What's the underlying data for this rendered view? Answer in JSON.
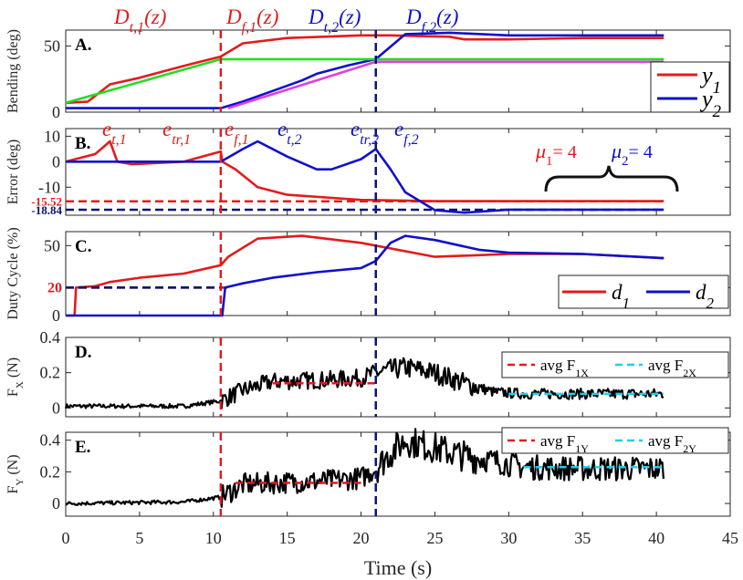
{
  "colors": {
    "red": "#e41a1c",
    "blue": "#1010cc",
    "navy": "#0c1470",
    "green": "#22dd22",
    "magenta": "#e040e0",
    "cyan": "#22ccee",
    "black": "#000000"
  },
  "xaxis": {
    "label": "Time (s)",
    "range": [
      0,
      45
    ],
    "ticks": [
      "0",
      "5",
      "10",
      "15",
      "20",
      "25",
      "30",
      "35",
      "40",
      "45"
    ]
  },
  "events": {
    "t_f1": 10.5,
    "t_f2": 21.0,
    "top_labels": [
      "D_{t,1}(z)",
      "D_{f,1}(z)",
      "D_{t,2}(z)",
      "D_{f,2}(z)"
    ]
  },
  "chart_data": [
    {
      "panel": "A.",
      "type": "line",
      "ylabel": "Bending (deg)",
      "ylim": [
        0,
        62
      ],
      "yticks": [
        "0",
        "50"
      ],
      "series": [
        {
          "name": "y_1",
          "color": "#e41a1c",
          "points": [
            [
              0,
              7
            ],
            [
              1.5,
              8
            ],
            [
              3,
              21
            ],
            [
              5,
              26
            ],
            [
              8,
              35
            ],
            [
              10.5,
              42
            ],
            [
              12,
              52
            ],
            [
              15,
              56
            ],
            [
              20,
              58
            ],
            [
              22,
              58
            ],
            [
              26,
              57
            ],
            [
              27,
              55
            ],
            [
              30,
              55
            ],
            [
              35,
              56
            ],
            [
              40.5,
              56
            ]
          ]
        },
        {
          "name": "y_2",
          "color": "#1010cc",
          "points": [
            [
              0,
              3
            ],
            [
              3,
              3
            ],
            [
              10.5,
              3
            ],
            [
              12,
              8
            ],
            [
              14,
              16
            ],
            [
              16,
              24
            ],
            [
              17,
              29
            ],
            [
              19,
              35
            ],
            [
              21,
              40
            ],
            [
              23,
              59
            ],
            [
              26,
              60
            ],
            [
              30,
              58
            ],
            [
              35,
              58
            ],
            [
              40.5,
              58
            ]
          ]
        },
        {
          "name": "reference 1",
          "color": "#22dd22",
          "points": [
            [
              0,
              7
            ],
            [
              10.5,
              40
            ],
            [
              40.5,
              40
            ]
          ]
        },
        {
          "name": "reference 2",
          "color": "#e040e0",
          "points": [
            [
              11,
              3
            ],
            [
              21,
              38
            ],
            [
              40.5,
              38
            ]
          ]
        }
      ],
      "legend": [
        {
          "symbol": "y",
          "sub": "1",
          "color": "#e41a1c"
        },
        {
          "symbol": "y",
          "sub": "2",
          "color": "#1010cc"
        }
      ]
    },
    {
      "panel": "B.",
      "type": "line",
      "ylabel": "Error (deg)",
      "ylim": [
        -21,
        13
      ],
      "yticks": [
        "10",
        "0",
        "-10"
      ],
      "ref_lines": [
        {
          "value": -15.52,
          "label": "-15.52",
          "color": "#e41a1c"
        },
        {
          "value": -18.84,
          "label": "-18.84",
          "color": "#0c1470"
        }
      ],
      "series": [
        {
          "name": "e_1",
          "color": "#e41a1c",
          "points": [
            [
              0,
              0
            ],
            [
              2,
              3
            ],
            [
              3,
              8
            ],
            [
              3.5,
              0
            ],
            [
              4.5,
              -1
            ],
            [
              8,
              0
            ],
            [
              10.5,
              4
            ],
            [
              10.6,
              0
            ],
            [
              11.5,
              -3
            ],
            [
              13,
              -10
            ],
            [
              15,
              -13
            ],
            [
              20,
              -15
            ],
            [
              25,
              -15.5
            ],
            [
              30,
              -15.5
            ],
            [
              40.5,
              -15.5
            ]
          ]
        },
        {
          "name": "e_2",
          "color": "#1010cc",
          "points": [
            [
              0,
              0
            ],
            [
              10.5,
              0
            ],
            [
              12,
              5
            ],
            [
              13,
              8
            ],
            [
              15,
              2
            ],
            [
              17,
              -3
            ],
            [
              18,
              -3
            ],
            [
              20,
              1
            ],
            [
              21,
              5
            ],
            [
              22,
              -3
            ],
            [
              23,
              -12
            ],
            [
              25,
              -19
            ],
            [
              27,
              -20
            ],
            [
              30,
              -18.8
            ],
            [
              40.5,
              -18.8
            ]
          ]
        }
      ],
      "annotations": [
        {
          "text": "e_{t,1}",
          "color": "#e41a1c"
        },
        {
          "text": "e_{tr,1}",
          "color": "#e41a1c"
        },
        {
          "text": "e_{f,1}",
          "color": "#e41a1c"
        },
        {
          "text": "e_{t,2}",
          "color": "#1010cc"
        },
        {
          "text": "e_{tr,2}",
          "color": "#1010cc"
        },
        {
          "text": "e_{f,2}",
          "color": "#1010cc"
        }
      ],
      "mu": [
        {
          "text": "μ1= 4",
          "color": "#e41a1c"
        },
        {
          "text": "μ2= 4",
          "color": "#1010cc"
        }
      ]
    },
    {
      "panel": "C.",
      "type": "line",
      "ylabel": "Duty Cycle (%)",
      "ylim": [
        0,
        60
      ],
      "yticks": [
        "0",
        "20",
        "50"
      ],
      "ref_lines": [
        {
          "value": 20,
          "label": "20",
          "color": "#e41a1c"
        }
      ],
      "series": [
        {
          "name": "d_1",
          "color": "#e41a1c",
          "points": [
            [
              0,
              0
            ],
            [
              0.6,
              0
            ],
            [
              0.7,
              20
            ],
            [
              2,
              21
            ],
            [
              3,
              24
            ],
            [
              5,
              27
            ],
            [
              8,
              30
            ],
            [
              10.5,
              36
            ],
            [
              11,
              42
            ],
            [
              13,
              55
            ],
            [
              16,
              57
            ],
            [
              20,
              52
            ],
            [
              25,
              42
            ],
            [
              30,
              44
            ],
            [
              35,
              44
            ],
            [
              40.5,
              41
            ]
          ]
        },
        {
          "name": "d_2",
          "color": "#1010cc",
          "points": [
            [
              0,
              0
            ],
            [
              10.6,
              0
            ],
            [
              10.8,
              20
            ],
            [
              12,
              23
            ],
            [
              14,
              27
            ],
            [
              17,
              31
            ],
            [
              20,
              34
            ],
            [
              21,
              39
            ],
            [
              22,
              52
            ],
            [
              23,
              57
            ],
            [
              25,
              54
            ],
            [
              28,
              47
            ],
            [
              30,
              45
            ],
            [
              35,
              44
            ],
            [
              40.5,
              41
            ]
          ]
        },
        {
          "name": "initial d_2 level",
          "color": "#0c1470",
          "points": [
            [
              0,
              20
            ],
            [
              10.6,
              20
            ]
          ]
        }
      ],
      "legend": [
        {
          "symbol": "d",
          "sub": "1",
          "color": "#e41a1c"
        },
        {
          "symbol": "d",
          "sub": "2",
          "color": "#1010cc"
        }
      ]
    },
    {
      "panel": "D.",
      "type": "line",
      "ylabel": "F_X (N)",
      "ylim": [
        -0.05,
        0.4
      ],
      "yticks": [
        "0",
        "0.2",
        "0.4"
      ],
      "series": [
        {
          "name": "F_X",
          "color": "#000000",
          "points": [
            [
              0,
              0.01
            ],
            [
              8,
              0.01
            ],
            [
              10.5,
              0.04
            ],
            [
              12,
              0.1
            ],
            [
              14,
              0.15
            ],
            [
              18,
              0.16
            ],
            [
              20,
              0.17
            ],
            [
              21,
              0.2
            ],
            [
              23,
              0.23
            ],
            [
              25,
              0.2
            ],
            [
              27,
              0.14
            ],
            [
              29,
              0.09
            ],
            [
              31,
              0.08
            ],
            [
              35,
              0.08
            ],
            [
              40.5,
              0.08
            ]
          ]
        }
      ],
      "averages": [
        {
          "label": "avg F_1X",
          "value": 0.14,
          "from": 14,
          "to": 21,
          "color": "#e41a1c"
        },
        {
          "label": "avg F_2X",
          "value": 0.08,
          "from": 30,
          "to": 40.5,
          "color": "#22ccee"
        }
      ]
    },
    {
      "panel": "E.",
      "type": "line",
      "ylabel": "F_Y (N)",
      "ylim": [
        -0.08,
        0.45
      ],
      "yticks": [
        "0",
        "0.2",
        "0.4"
      ],
      "series": [
        {
          "name": "F_Y",
          "color": "#000000",
          "points": [
            [
              0,
              0.0
            ],
            [
              8,
              0.01
            ],
            [
              10.5,
              0.04
            ],
            [
              12,
              0.12
            ],
            [
              14,
              0.13
            ],
            [
              17,
              0.14
            ],
            [
              20,
              0.16
            ],
            [
              21,
              0.22
            ],
            [
              22,
              0.32
            ],
            [
              23,
              0.4
            ],
            [
              25,
              0.35
            ],
            [
              27,
              0.3
            ],
            [
              29,
              0.27
            ],
            [
              31,
              0.23
            ],
            [
              35,
              0.22
            ],
            [
              40.5,
              0.22
            ]
          ]
        }
      ],
      "averages": [
        {
          "label": "avg F_1Y",
          "value": 0.13,
          "from": 11.5,
          "to": 20,
          "color": "#e41a1c"
        },
        {
          "label": "avg F_2Y",
          "value": 0.23,
          "from": 31,
          "to": 40.5,
          "color": "#22ccee"
        }
      ]
    }
  ]
}
